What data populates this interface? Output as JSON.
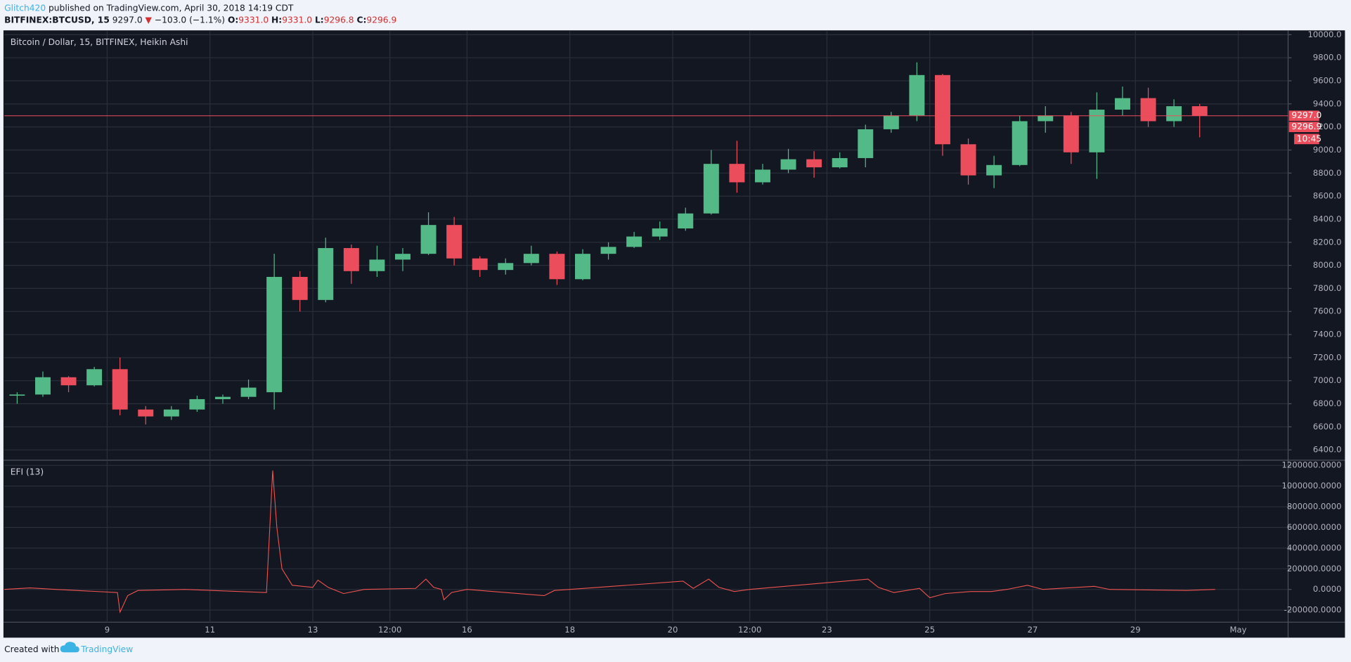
{
  "header": {
    "author": "Glitch420",
    "published": "published on TradingView.com, April 30, 2018 14:19 CDT",
    "symbol": "BITFINEX:BTCUSD, 15",
    "last": "9297.0",
    "arrow": "▼",
    "change": "−103.0 (−1.1%)",
    "o_label": "O:",
    "o": "9331.0",
    "h_label": "H:",
    "h": "9331.0",
    "l_label": "L:",
    "l": "9296.8",
    "c_label": "C:",
    "c": "9296.9"
  },
  "chart_data": [
    {
      "type": "candlestick",
      "title": "Bitcoin / Dollar, 15, BITFINEX, Heikin Ashi",
      "up_color": "#53b987",
      "down_color": "#eb4d5c",
      "x": [
        7.25,
        7.75,
        8.25,
        8.75,
        9.25,
        9.75,
        10.25,
        10.75,
        11.25,
        11.75,
        12.25,
        12.75,
        13.25,
        13.75,
        14.25,
        14.75,
        15.25,
        15.75,
        16.25,
        16.75,
        17.25,
        17.75,
        18.25,
        18.75,
        19.25,
        19.75,
        20.25,
        20.75,
        21.25,
        21.75,
        22.25,
        22.75,
        23.25,
        23.75,
        24.25,
        24.75,
        25.25,
        25.75,
        26.25,
        26.75,
        27.25,
        27.75,
        28.25,
        28.75,
        29.25,
        29.75,
        30.25
      ],
      "open": [
        6870,
        6880,
        7030,
        6960,
        7100,
        6750,
        6690,
        6750,
        6840,
        6860,
        6900,
        7900,
        7700,
        8150,
        7950,
        8050,
        8100,
        8350,
        8060,
        7960,
        8020,
        8100,
        7880,
        8100,
        8160,
        8250,
        8320,
        8450,
        8880,
        8720,
        8830,
        8920,
        8850,
        8930,
        9180,
        9300,
        9650,
        9050,
        8780,
        8870,
        9250,
        9300,
        8980,
        9350,
        9450,
        9250,
        9380
      ],
      "high": [
        6900,
        7080,
        7040,
        7120,
        7200,
        6780,
        6780,
        6870,
        6880,
        7010,
        8100,
        7950,
        8240,
        8180,
        8170,
        8150,
        8460,
        8420,
        8080,
        8060,
        8170,
        8120,
        8140,
        8200,
        8290,
        8380,
        8500,
        9000,
        9080,
        8880,
        9010,
        8990,
        8980,
        9220,
        9330,
        9760,
        9660,
        9100,
        8950,
        9300,
        9380,
        9330,
        9500,
        9550,
        9540,
        9440,
        9400
      ],
      "low": [
        6800,
        6860,
        6900,
        6950,
        6700,
        6620,
        6660,
        6730,
        6800,
        6840,
        6750,
        7600,
        7680,
        7840,
        7900,
        7950,
        8090,
        8000,
        7900,
        7920,
        8000,
        7830,
        7870,
        8050,
        8150,
        8220,
        8300,
        8440,
        8630,
        8700,
        8800,
        8760,
        8840,
        8850,
        9150,
        9250,
        8950,
        8700,
        8670,
        8860,
        9150,
        8880,
        8750,
        9300,
        9200,
        9200,
        9110
      ],
      "close": [
        6880,
        7030,
        6960,
        7100,
        6750,
        6690,
        6750,
        6840,
        6860,
        6940,
        7900,
        7700,
        8150,
        7950,
        8050,
        8100,
        8350,
        8060,
        7960,
        8020,
        8100,
        7880,
        8100,
        8160,
        8250,
        8320,
        8450,
        8880,
        8720,
        8830,
        8920,
        8850,
        8930,
        9180,
        9300,
        9650,
        9050,
        8780,
        8870,
        9250,
        9300,
        8980,
        9350,
        9450,
        9250,
        9380,
        9296.9
      ],
      "xlim": [
        7,
        31.97
      ],
      "ylim": [
        6318,
        10030
      ],
      "yticks": [
        {
          "value": 6400,
          "label": "6400.0"
        },
        {
          "value": 6600,
          "label": "6600.0"
        },
        {
          "value": 6800,
          "label": "6800.0"
        },
        {
          "value": 7000,
          "label": "7000.0"
        },
        {
          "value": 7200,
          "label": "7200.0"
        },
        {
          "value": 7400,
          "label": "7400.0"
        },
        {
          "value": 7600,
          "label": "7600.0"
        },
        {
          "value": 7800,
          "label": "7800.0"
        },
        {
          "value": 8000,
          "label": "8000.0"
        },
        {
          "value": 8200,
          "label": "8200.0"
        },
        {
          "value": 8400,
          "label": "8400.0"
        },
        {
          "value": 8600,
          "label": "8600.0"
        },
        {
          "value": 8800,
          "label": "8800.0"
        },
        {
          "value": 9000,
          "label": "9000.0"
        },
        {
          "value": 9200,
          "label": "9200.0"
        },
        {
          "value": 9400,
          "label": "9400.0"
        },
        {
          "value": 9600,
          "label": "9600.0"
        },
        {
          "value": 9800,
          "label": "9800.0"
        },
        {
          "value": 10000,
          "label": "10000.0"
        }
      ],
      "last_price": {
        "value": 9297,
        "label": "9297.0"
      },
      "countdown": "10:45",
      "grid": true
    },
    {
      "type": "line",
      "title": "EFI (13)",
      "color": "#ef5350",
      "x": [
        7.0,
        7.5,
        8.0,
        9.2,
        9.25,
        9.4,
        9.6,
        10.5,
        12.1,
        12.22,
        12.3,
        12.4,
        12.6,
        13.0,
        13.1,
        13.3,
        13.6,
        14.0,
        15.0,
        15.2,
        15.35,
        15.5,
        15.55,
        15.7,
        16.0,
        17.5,
        17.7,
        18.0,
        20.2,
        20.4,
        20.7,
        20.9,
        21.2,
        21.5,
        23.8,
        24.0,
        24.3,
        24.8,
        25.0,
        25.3,
        25.8,
        26.2,
        26.5,
        26.9,
        27.2,
        28.2,
        28.5,
        30.0,
        30.55
      ],
      "values": [
        0,
        15000,
        0,
        -30000,
        -220000,
        -60000,
        -10000,
        0,
        -30000,
        1150000,
        600000,
        200000,
        40000,
        20000,
        90000,
        20000,
        -40000,
        0,
        10000,
        100000,
        20000,
        0,
        -100000,
        -30000,
        0,
        -60000,
        -10000,
        0,
        80000,
        10000,
        100000,
        20000,
        -20000,
        0,
        100000,
        20000,
        -30000,
        10000,
        -80000,
        -40000,
        -20000,
        -20000,
        0,
        40000,
        0,
        30000,
        0,
        -10000,
        0
      ],
      "xlim": [
        7,
        31.97
      ],
      "ylim": [
        -316700,
        1241700
      ],
      "xticks": [
        9,
        11,
        13,
        {
          "value": 14.5,
          "label": "12:00"
        },
        16,
        18,
        20,
        {
          "value": 21.5,
          "label": "12:00"
        },
        23,
        25,
        27,
        29,
        {
          "value": 31,
          "label": "May"
        }
      ],
      "yticks": [
        {
          "value": -200000,
          "label": "-200000.0000"
        },
        {
          "value": 0,
          "label": "0.0000"
        },
        {
          "value": 200000,
          "label": "200000.0000"
        },
        {
          "value": 400000,
          "label": "400000.0000"
        },
        {
          "value": 600000,
          "label": "600000.0000"
        },
        {
          "value": 800000,
          "label": "800000.0000"
        },
        {
          "value": 1000000,
          "label": "1000000.0000"
        },
        {
          "value": 1200000,
          "label": "1200000.0000"
        }
      ],
      "grid": true
    }
  ],
  "footer": {
    "created": "Created with",
    "brand": "TradingView"
  }
}
